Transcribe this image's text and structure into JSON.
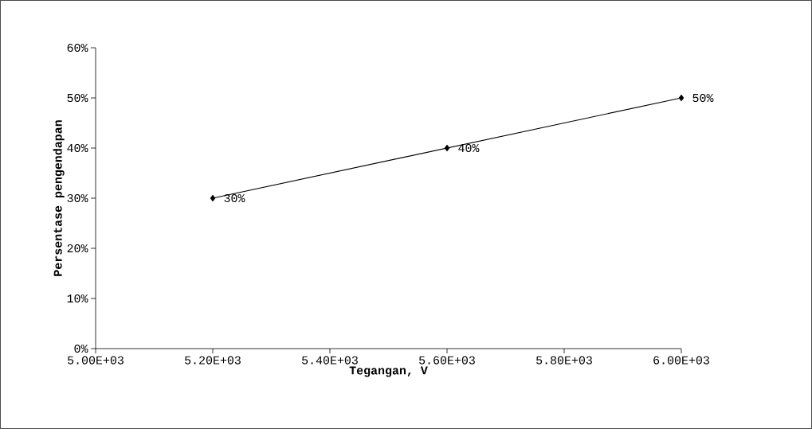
{
  "chart_data": {
    "type": "line",
    "xlabel": "Tegangan, V",
    "ylabel": "Persentase pengendapan",
    "x": [
      5200,
      5600,
      6000
    ],
    "values": [
      30,
      40,
      50
    ],
    "value_labels": [
      "30%",
      "40%",
      "50%"
    ],
    "color": "#000000",
    "marker": "diamond",
    "line_style": "solid",
    "grid": false,
    "xlim": [
      5000,
      6000
    ],
    "ylim": [
      0,
      60
    ],
    "xticks": [
      {
        "value": 5000,
        "label": "5.00E+03"
      },
      {
        "value": 5200,
        "label": "5.20E+03"
      },
      {
        "value": 5400,
        "label": "5.40E+03"
      },
      {
        "value": 5600,
        "label": "5.60E+03"
      },
      {
        "value": 5800,
        "label": "5.80E+03"
      },
      {
        "value": 6000,
        "label": "6.00E+03"
      }
    ],
    "yticks": [
      {
        "value": 0,
        "label": "0%"
      },
      {
        "value": 10,
        "label": "10%"
      },
      {
        "value": 20,
        "label": "20%"
      },
      {
        "value": 30,
        "label": "30%"
      },
      {
        "value": 40,
        "label": "40%"
      },
      {
        "value": 50,
        "label": "50%"
      },
      {
        "value": 60,
        "label": "60%"
      }
    ]
  }
}
